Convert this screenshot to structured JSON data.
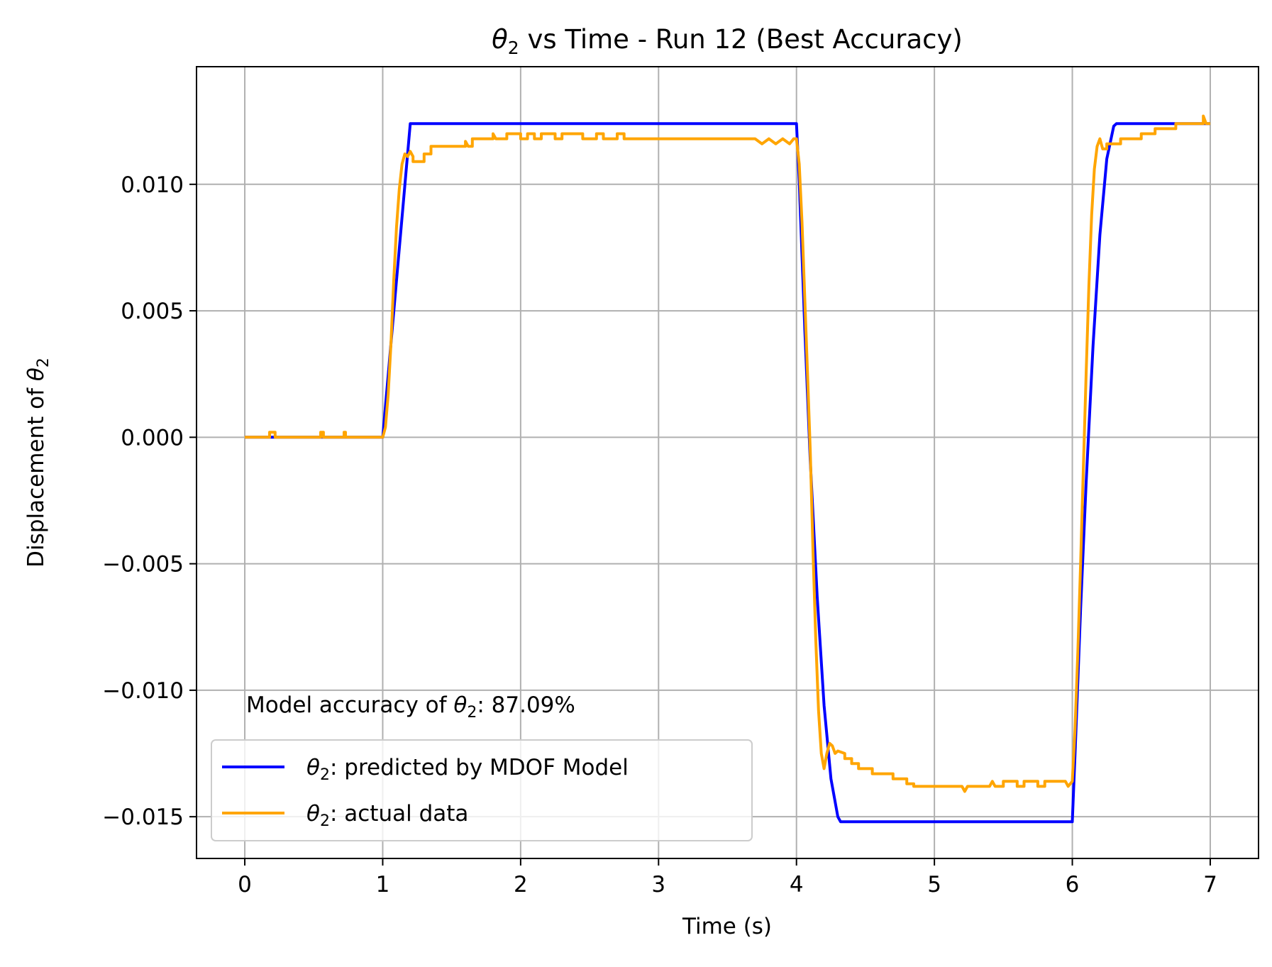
{
  "chart_data": {
    "type": "line",
    "title_parts": {
      "symbol": "θ",
      "sub": "2",
      "rest": " vs Time - Run 12 (Best Accuracy)"
    },
    "xlabel": "Time (s)",
    "ylabel_parts": {
      "text": "Displacement of ",
      "symbol": "θ",
      "sub": "2"
    },
    "xlim": [
      -0.35,
      7.35
    ],
    "ylim": [
      -0.01665,
      0.01465
    ],
    "x_ticks": [
      0,
      1,
      2,
      3,
      4,
      5,
      6,
      7
    ],
    "x_tick_labels": [
      "0",
      "1",
      "2",
      "3",
      "4",
      "5",
      "6",
      "7"
    ],
    "y_ticks": [
      0.01,
      0.005,
      0.0,
      -0.005,
      -0.01,
      -0.015
    ],
    "y_tick_labels": [
      "0.010",
      "0.005",
      "0.000",
      "−0.005",
      "−0.010",
      "−0.015"
    ],
    "grid": true,
    "legend_position": "lower-left",
    "annotation": {
      "text_parts": {
        "prefix": "Model accuracy of ",
        "symbol": "θ",
        "sub": "2",
        "suffix": ": 87.09%"
      }
    },
    "series": [
      {
        "name_parts": {
          "symbol": "θ",
          "sub": "2",
          "rest": ": predicted by MDOF Model"
        },
        "color": "#0000ff",
        "points": [
          [
            0,
            0
          ],
          [
            1.0,
            0
          ],
          [
            1.05,
            0.0031
          ],
          [
            1.1,
            0.0062
          ],
          [
            1.15,
            0.0093
          ],
          [
            1.2,
            0.0124
          ],
          [
            4.0,
            0.0124
          ],
          [
            4.02,
            0.0101
          ],
          [
            4.06,
            0.0043
          ],
          [
            4.1,
            -0.0009
          ],
          [
            4.15,
            -0.0063
          ],
          [
            4.2,
            -0.0106
          ],
          [
            4.25,
            -0.0135
          ],
          [
            4.3,
            -0.015
          ],
          [
            4.32,
            -0.0152
          ],
          [
            6.0,
            -0.0152
          ],
          [
            6.02,
            -0.0125
          ],
          [
            6.06,
            -0.0068
          ],
          [
            6.1,
            -0.0018
          ],
          [
            6.15,
            0.0036
          ],
          [
            6.2,
            0.008
          ],
          [
            6.25,
            0.011
          ],
          [
            6.3,
            0.0123
          ],
          [
            6.32,
            0.0124
          ],
          [
            7.0,
            0.0124
          ]
        ]
      },
      {
        "name_parts": {
          "symbol": "θ",
          "sub": "2",
          "rest": ": actual data"
        },
        "color": "#ffa500",
        "points": [
          [
            0,
            0
          ],
          [
            0.18,
            0
          ],
          [
            0.18,
            0.0002
          ],
          [
            0.22,
            0.0002
          ],
          [
            0.22,
            0
          ],
          [
            0.55,
            0
          ],
          [
            0.55,
            0.0002
          ],
          [
            0.57,
            0.0002
          ],
          [
            0.57,
            0
          ],
          [
            0.72,
            0
          ],
          [
            0.72,
            0.0002
          ],
          [
            0.73,
            0.0002
          ],
          [
            0.73,
            0
          ],
          [
            1.0,
            0
          ],
          [
            1.02,
            0.0004
          ],
          [
            1.04,
            0.0017
          ],
          [
            1.06,
            0.0037
          ],
          [
            1.08,
            0.0062
          ],
          [
            1.1,
            0.0083
          ],
          [
            1.12,
            0.0098
          ],
          [
            1.14,
            0.0108
          ],
          [
            1.16,
            0.0112
          ],
          [
            1.18,
            0.0111
          ],
          [
            1.2,
            0.0113
          ],
          [
            1.22,
            0.0111
          ],
          [
            1.22,
            0.0109
          ],
          [
            1.3,
            0.0109
          ],
          [
            1.3,
            0.0112
          ],
          [
            1.35,
            0.0112
          ],
          [
            1.35,
            0.0115
          ],
          [
            1.6,
            0.0115
          ],
          [
            1.6,
            0.0117
          ],
          [
            1.62,
            0.0115
          ],
          [
            1.65,
            0.0115
          ],
          [
            1.65,
            0.0118
          ],
          [
            1.8,
            0.0118
          ],
          [
            1.8,
            0.012
          ],
          [
            1.82,
            0.0118
          ],
          [
            1.9,
            0.0118
          ],
          [
            1.9,
            0.012
          ],
          [
            2.0,
            0.012
          ],
          [
            2.0,
            0.0118
          ],
          [
            2.05,
            0.0118
          ],
          [
            2.05,
            0.012
          ],
          [
            2.1,
            0.012
          ],
          [
            2.1,
            0.0118
          ],
          [
            2.15,
            0.0118
          ],
          [
            2.15,
            0.012
          ],
          [
            2.25,
            0.012
          ],
          [
            2.25,
            0.0118
          ],
          [
            2.3,
            0.0118
          ],
          [
            2.3,
            0.012
          ],
          [
            2.45,
            0.012
          ],
          [
            2.45,
            0.0118
          ],
          [
            2.55,
            0.0118
          ],
          [
            2.55,
            0.012
          ],
          [
            2.6,
            0.012
          ],
          [
            2.6,
            0.0118
          ],
          [
            2.7,
            0.0118
          ],
          [
            2.7,
            0.012
          ],
          [
            2.75,
            0.012
          ],
          [
            2.75,
            0.0118
          ],
          [
            3.7,
            0.0118
          ],
          [
            3.75,
            0.0116
          ],
          [
            3.8,
            0.0118
          ],
          [
            3.85,
            0.0116
          ],
          [
            3.9,
            0.0118
          ],
          [
            3.95,
            0.0116
          ],
          [
            3.98,
            0.0118
          ],
          [
            4.0,
            0.0118
          ],
          [
            4.02,
            0.0108
          ],
          [
            4.04,
            0.0085
          ],
          [
            4.06,
            0.0055
          ],
          [
            4.08,
            0.0025
          ],
          [
            4.1,
            -0.0005
          ],
          [
            4.12,
            -0.0045
          ],
          [
            4.14,
            -0.008
          ],
          [
            4.16,
            -0.0108
          ],
          [
            4.18,
            -0.0125
          ],
          [
            4.2,
            -0.0131
          ],
          [
            4.22,
            -0.0125
          ],
          [
            4.24,
            -0.0121
          ],
          [
            4.26,
            -0.0122
          ],
          [
            4.28,
            -0.0125
          ],
          [
            4.3,
            -0.0124
          ],
          [
            4.35,
            -0.0125
          ],
          [
            4.35,
            -0.0127
          ],
          [
            4.4,
            -0.0127
          ],
          [
            4.4,
            -0.0129
          ],
          [
            4.45,
            -0.0129
          ],
          [
            4.45,
            -0.0131
          ],
          [
            4.55,
            -0.0131
          ],
          [
            4.55,
            -0.0133
          ],
          [
            4.7,
            -0.0133
          ],
          [
            4.7,
            -0.0135
          ],
          [
            4.8,
            -0.0135
          ],
          [
            4.8,
            -0.0137
          ],
          [
            4.85,
            -0.0137
          ],
          [
            4.85,
            -0.0138
          ],
          [
            5.2,
            -0.0138
          ],
          [
            5.22,
            -0.014
          ],
          [
            5.24,
            -0.0138
          ],
          [
            5.4,
            -0.0138
          ],
          [
            5.42,
            -0.0136
          ],
          [
            5.44,
            -0.0138
          ],
          [
            5.5,
            -0.0138
          ],
          [
            5.5,
            -0.0136
          ],
          [
            5.6,
            -0.0136
          ],
          [
            5.6,
            -0.0138
          ],
          [
            5.65,
            -0.0138
          ],
          [
            5.65,
            -0.0136
          ],
          [
            5.75,
            -0.0136
          ],
          [
            5.75,
            -0.0138
          ],
          [
            5.8,
            -0.0138
          ],
          [
            5.8,
            -0.0136
          ],
          [
            5.95,
            -0.0136
          ],
          [
            5.97,
            -0.0138
          ],
          [
            6.0,
            -0.0136
          ],
          [
            6.02,
            -0.0115
          ],
          [
            6.04,
            -0.0085
          ],
          [
            6.06,
            -0.005
          ],
          [
            6.08,
            -0.0012
          ],
          [
            6.1,
            0.0025
          ],
          [
            6.12,
            0.006
          ],
          [
            6.14,
            0.0088
          ],
          [
            6.16,
            0.0106
          ],
          [
            6.18,
            0.0115
          ],
          [
            6.2,
            0.0118
          ],
          [
            6.22,
            0.0114
          ],
          [
            6.25,
            0.0114
          ],
          [
            6.25,
            0.0116
          ],
          [
            6.35,
            0.0116
          ],
          [
            6.35,
            0.0118
          ],
          [
            6.5,
            0.0118
          ],
          [
            6.5,
            0.012
          ],
          [
            6.6,
            0.012
          ],
          [
            6.6,
            0.0122
          ],
          [
            6.75,
            0.0122
          ],
          [
            6.75,
            0.0124
          ],
          [
            6.95,
            0.0124
          ],
          [
            6.95,
            0.0127
          ],
          [
            6.97,
            0.0124
          ],
          [
            7.0,
            0.0124
          ]
        ]
      }
    ]
  }
}
